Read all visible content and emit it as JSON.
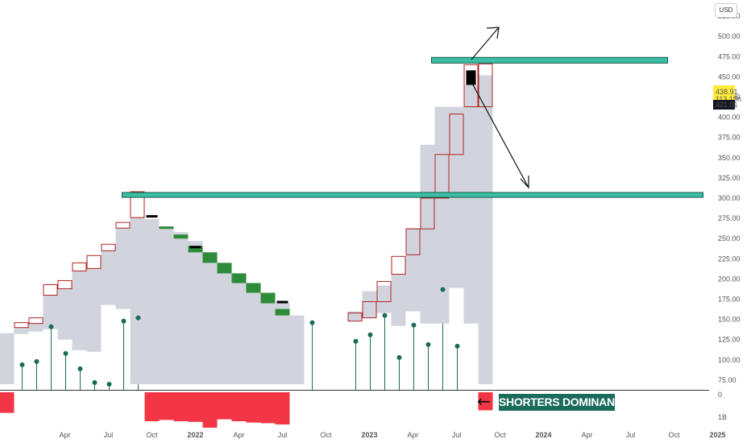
{
  "currency": "USD",
  "annotation": {
    "text": "SHORTERS DOMINANCE.",
    "arrow": "←"
  },
  "colors": {
    "candle_fill": "#d1d4dc",
    "outline_candle": "#b22222",
    "green_block": "#2e8b3a",
    "black_block": "#000000",
    "dot_stem": "#1b6b5b",
    "zone": "#3cbfa5",
    "zone_border": "#0f5a4a",
    "volume_bar": "#f23645",
    "price_label_bg": "#ffeb3b",
    "last_price_bg": "#131722"
  },
  "chart_data": {
    "type": "candlestick",
    "y_axis": {
      "ticks": [
        "75.00",
        "100.00",
        "125.00",
        "150.00",
        "175.00",
        "200.00",
        "225.00",
        "250.00",
        "275.00",
        "300.00",
        "325.00",
        "350.00",
        "375.00",
        "400.00",
        "425.00",
        "450.00",
        "475.00",
        "500.00",
        "525.00"
      ],
      "range": [
        63,
        545
      ],
      "price_labels": [
        "438.91",
        "113.19h",
        "421.01"
      ]
    },
    "volume_axis": {
      "ticks": [
        "0",
        "1B"
      ]
    },
    "x_axis": {
      "ticks": [
        "Apr",
        "Jul",
        "Oct",
        "2022",
        "Apr",
        "Jul",
        "Oct",
        "2023",
        "Apr",
        "Jul",
        "Oct",
        "2024",
        "Apr",
        "Jul",
        "Oct",
        "2025"
      ],
      "tick_dates": [
        "2021-04",
        "2021-07",
        "2021-10",
        "2022-01",
        "2022-04",
        "2022-07",
        "2022-10",
        "2023-01",
        "2023-04",
        "2023-07",
        "2023-10",
        "2024-01",
        "2024-04",
        "2024-07",
        "2024-10",
        "2025-01"
      ]
    },
    "filled_candles": [
      {
        "date": "2021-01",
        "low": 70,
        "high": 133
      },
      {
        "date": "2021-02",
        "low": 132,
        "high": 140
      },
      {
        "date": "2021-03",
        "low": 135,
        "high": 145
      },
      {
        "date": "2021-04",
        "low": 138,
        "high": 180
      },
      {
        "date": "2021-05",
        "low": 125,
        "high": 188
      },
      {
        "date": "2021-06",
        "low": 112,
        "high": 210
      },
      {
        "date": "2021-07",
        "low": 110,
        "high": 213
      },
      {
        "date": "2021-08",
        "low": 168,
        "high": 235
      },
      {
        "date": "2021-09",
        "low": 163,
        "high": 263
      },
      {
        "date": "2021-10",
        "low": 70,
        "high": 276
      },
      {
        "date": "2021-11",
        "low": 70,
        "high": 274
      },
      {
        "date": "2021-12",
        "low": 70,
        "high": 265
      },
      {
        "date": "2022-01",
        "low": 70,
        "high": 258
      },
      {
        "date": "2022-02",
        "low": 70,
        "high": 247
      },
      {
        "date": "2022-03",
        "low": 70,
        "high": 233
      },
      {
        "date": "2022-04",
        "low": 70,
        "high": 220
      },
      {
        "date": "2022-05",
        "low": 70,
        "high": 207
      },
      {
        "date": "2022-06",
        "low": 70,
        "high": 195
      },
      {
        "date": "2022-07",
        "low": 70,
        "high": 183
      },
      {
        "date": "2022-08",
        "low": 70,
        "high": 170
      },
      {
        "date": "2022-09",
        "low": 70,
        "high": 155
      },
      {
        "date": "2023-01",
        "low": 148,
        "high": 160
      },
      {
        "date": "2023-02",
        "low": 152,
        "high": 185
      },
      {
        "date": "2023-03",
        "low": 158,
        "high": 192
      },
      {
        "date": "2023-04",
        "low": 142,
        "high": 206
      },
      {
        "date": "2023-05",
        "low": 160,
        "high": 263
      },
      {
        "date": "2023-06",
        "low": 145,
        "high": 366
      },
      {
        "date": "2023-07",
        "low": 145,
        "high": 413
      },
      {
        "date": "2023-08",
        "low": 189,
        "high": 413
      },
      {
        "date": "2023-09",
        "low": 145,
        "high": 440
      },
      {
        "date": "2023-10",
        "low": 70,
        "high": 452
      }
    ],
    "outline_candles": [
      {
        "date": "2021-02",
        "low": 140,
        "high": 146
      },
      {
        "date": "2021-03",
        "low": 145,
        "high": 152
      },
      {
        "date": "2021-04",
        "low": 180,
        "high": 193
      },
      {
        "date": "2021-05",
        "low": 188,
        "high": 198
      },
      {
        "date": "2021-06",
        "low": 210,
        "high": 220
      },
      {
        "date": "2021-07",
        "low": 213,
        "high": 229
      },
      {
        "date": "2021-08",
        "low": 235,
        "high": 243
      },
      {
        "date": "2021-09",
        "low": 263,
        "high": 270
      },
      {
        "date": "2021-10",
        "low": 276,
        "high": 308
      },
      {
        "date": "2023-01",
        "low": 148,
        "high": 158
      },
      {
        "date": "2023-02",
        "low": 152,
        "high": 172
      },
      {
        "date": "2023-03",
        "low": 172,
        "high": 197
      },
      {
        "date": "2023-04",
        "low": 206,
        "high": 228
      },
      {
        "date": "2023-05",
        "low": 230,
        "high": 262
      },
      {
        "date": "2023-06",
        "low": 262,
        "high": 300
      },
      {
        "date": "2023-07",
        "low": 300,
        "high": 354
      },
      {
        "date": "2023-08",
        "low": 354,
        "high": 404
      },
      {
        "date": "2023-09",
        "low": 413,
        "high": 465
      },
      {
        "date": "2023-10",
        "low": 413,
        "high": 466
      }
    ],
    "green_blocks": [
      {
        "date": "2021-12",
        "low": 262,
        "high": 265
      },
      {
        "date": "2022-01",
        "low": 250,
        "high": 255
      },
      {
        "date": "2022-02",
        "low": 233,
        "high": 241
      },
      {
        "date": "2022-03",
        "low": 220,
        "high": 233
      },
      {
        "date": "2022-04",
        "low": 207,
        "high": 220
      },
      {
        "date": "2022-05",
        "low": 195,
        "high": 207
      },
      {
        "date": "2022-06",
        "low": 183,
        "high": 195
      },
      {
        "date": "2022-07",
        "low": 170,
        "high": 183
      },
      {
        "date": "2022-08",
        "low": 155,
        "high": 163
      }
    ],
    "black_blocks": [
      {
        "date": "2021-11",
        "low": 276,
        "high": 279
      },
      {
        "date": "2022-02",
        "low": 238,
        "high": 241
      },
      {
        "date": "2022-08",
        "low": 170,
        "high": 173
      },
      {
        "date": "2023-09",
        "low": 440,
        "high": 458
      }
    ],
    "dots": [
      {
        "date": "2021-02",
        "value": 94
      },
      {
        "date": "2021-03",
        "value": 98
      },
      {
        "date": "2021-04",
        "value": 141
      },
      {
        "date": "2021-05",
        "value": 108
      },
      {
        "date": "2021-06",
        "value": 89
      },
      {
        "date": "2021-07",
        "value": 72
      },
      {
        "date": "2021-08",
        "value": 70
      },
      {
        "date": "2021-09",
        "value": 148
      },
      {
        "date": "2021-10",
        "value": 152
      },
      {
        "date": "2022-10",
        "value": 146
      },
      {
        "date": "2023-01",
        "value": 123
      },
      {
        "date": "2023-02",
        "value": 131
      },
      {
        "date": "2023-03",
        "value": 155
      },
      {
        "date": "2023-04",
        "value": 103
      },
      {
        "date": "2023-05",
        "value": 143
      },
      {
        "date": "2023-06",
        "value": 119
      },
      {
        "date": "2023-07",
        "value": 187
      },
      {
        "date": "2023-08",
        "value": 117
      }
    ],
    "zones": [
      {
        "low": 467,
        "high": 474,
        "from": "2023-06",
        "to": "2024-10"
      },
      {
        "low": 301,
        "high": 307,
        "from": "2021-09",
        "to": "2025-01"
      }
    ],
    "volume": [
      {
        "date": "2021-01",
        "value": 0.32
      },
      {
        "date": "2021-11",
        "value": 0.45
      },
      {
        "date": "2021-12",
        "value": 0.43
      },
      {
        "date": "2022-01",
        "value": 0.45
      },
      {
        "date": "2022-02",
        "value": 0.46
      },
      {
        "date": "2022-03",
        "value": 0.55
      },
      {
        "date": "2022-04",
        "value": 0.42
      },
      {
        "date": "2022-05",
        "value": 0.45
      },
      {
        "date": "2022-06",
        "value": 0.47
      },
      {
        "date": "2022-07",
        "value": 0.48
      },
      {
        "date": "2022-08",
        "value": 0.5
      },
      {
        "date": "2023-10",
        "value": 0.28
      }
    ]
  }
}
